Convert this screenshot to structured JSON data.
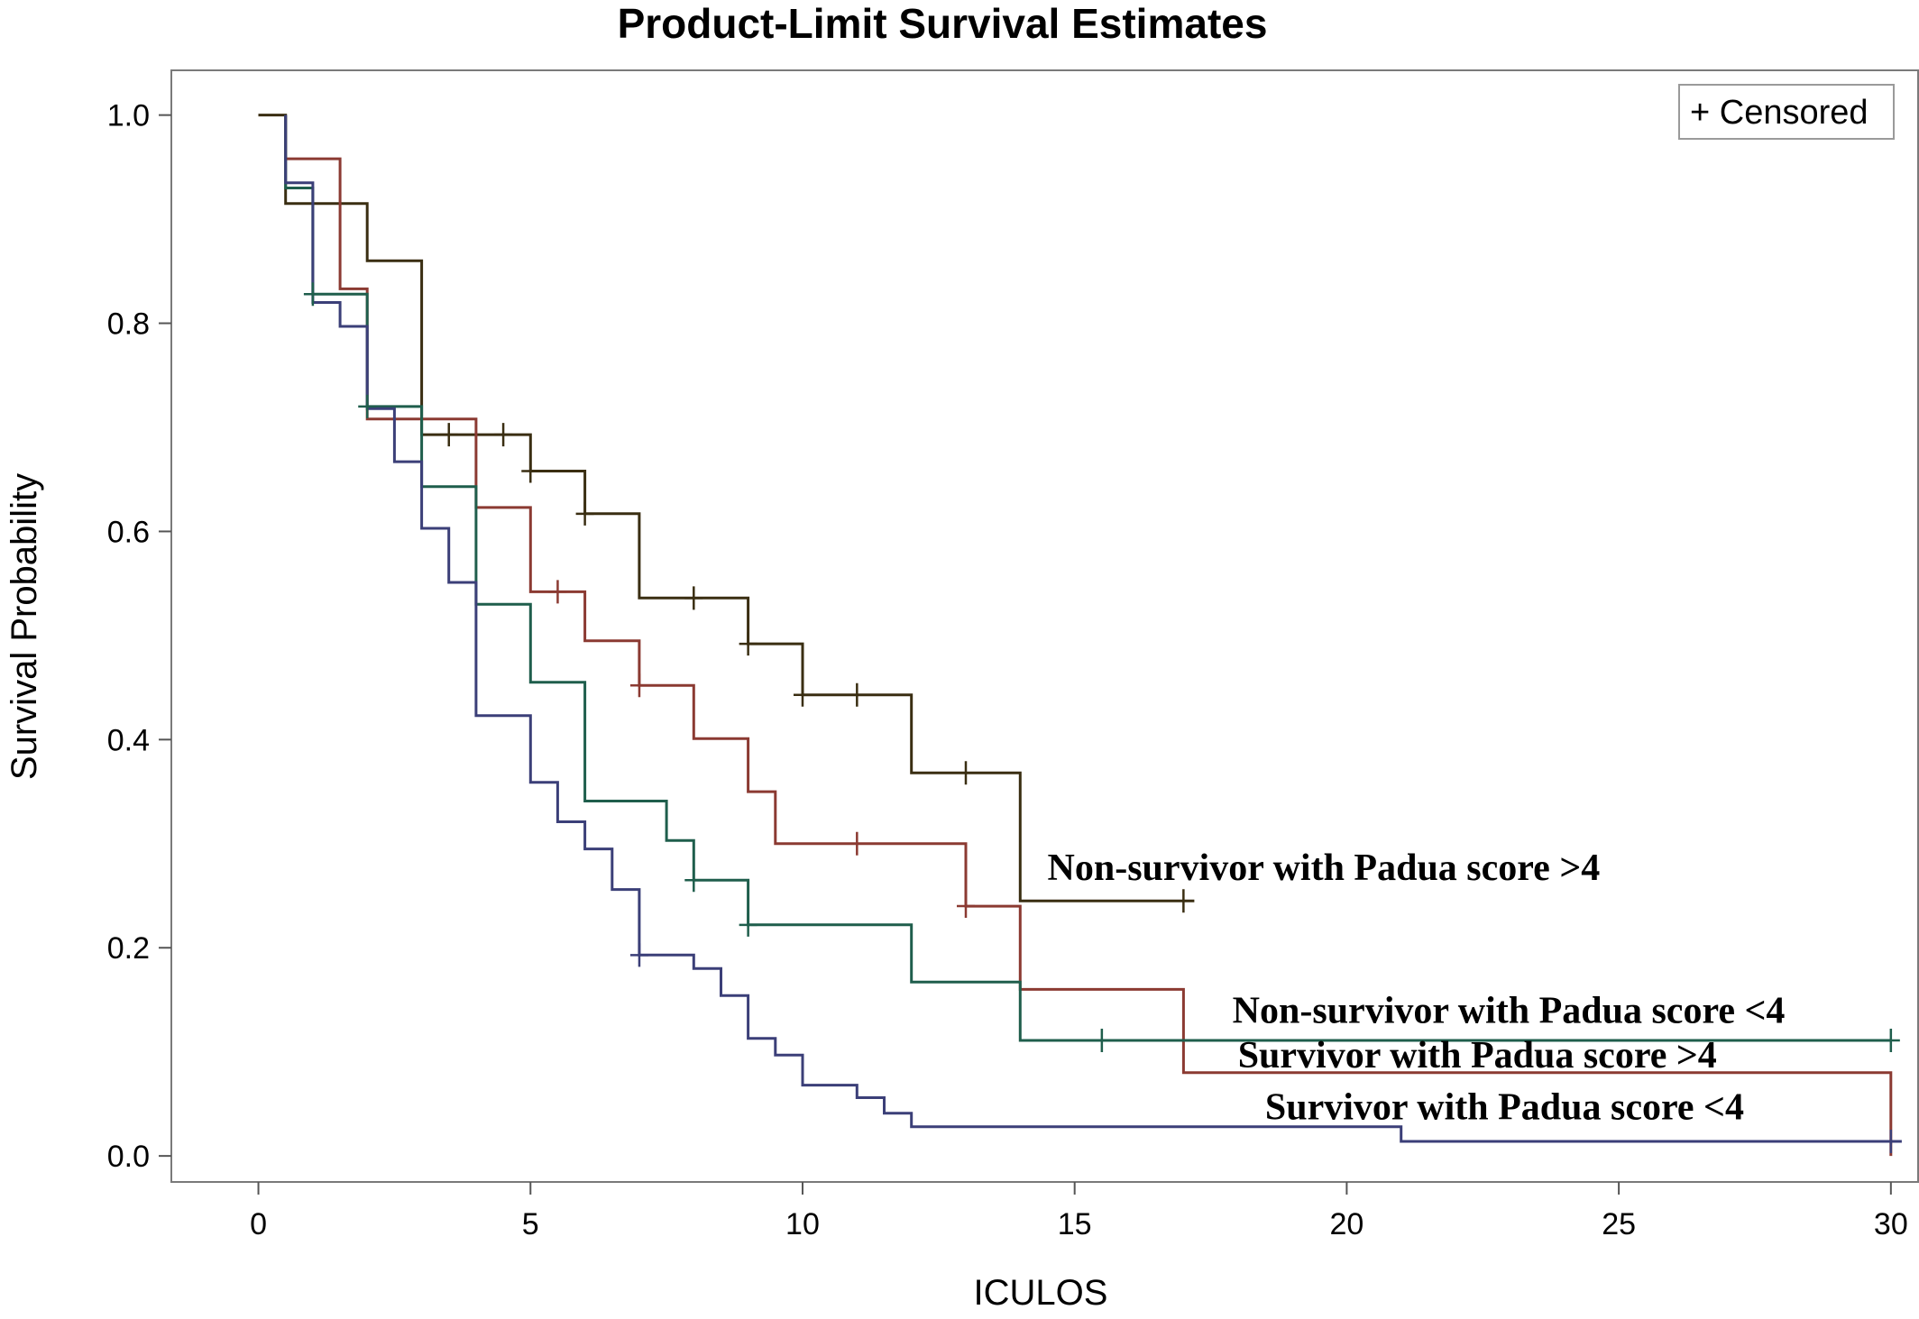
{
  "chart_data": {
    "type": "line",
    "step": true,
    "title": "Product-Limit Survival Estimates",
    "xlabel": "ICULOS",
    "ylabel": "Survival Probability",
    "xlim": [
      -1.6,
      30.5
    ],
    "ylim": [
      -0.025,
      1.043
    ],
    "xticks": [
      0,
      5,
      10,
      15,
      20,
      25,
      30
    ],
    "yticks": [
      0.0,
      0.2,
      0.4,
      0.6,
      0.8,
      1.0
    ],
    "xtick_labels": [
      "0",
      "5",
      "10",
      "15",
      "20",
      "25",
      "30"
    ],
    "ytick_labels": [
      "0.0",
      "0.2",
      "0.4",
      "0.6",
      "0.8",
      "1.0"
    ],
    "grid": false,
    "legend": {
      "text": "+ Censored",
      "placement": "top-right"
    },
    "series": [
      {
        "color": "#3a2e12",
        "steps": [
          [
            0,
            1.0
          ],
          [
            0.5,
            0.915
          ],
          [
            2.0,
            0.86
          ],
          [
            3.0,
            0.693
          ],
          [
            5.0,
            0.658
          ],
          [
            6.0,
            0.617
          ],
          [
            7.0,
            0.536
          ],
          [
            9.0,
            0.492
          ],
          [
            10.0,
            0.443
          ],
          [
            12.0,
            0.368
          ],
          [
            14.0,
            0.245
          ],
          [
            17.2,
            0.245
          ]
        ],
        "censored": [
          [
            3.5,
            0.693
          ],
          [
            4.5,
            0.693
          ],
          [
            5.0,
            0.658
          ],
          [
            6.0,
            0.617
          ],
          [
            8.0,
            0.536
          ],
          [
            9.0,
            0.492
          ],
          [
            10.0,
            0.443
          ],
          [
            11.0,
            0.443
          ],
          [
            13.0,
            0.368
          ],
          [
            17.0,
            0.245
          ]
        ]
      },
      {
        "color": "#8b3a32",
        "steps": [
          [
            0.5,
            1.0
          ],
          [
            0.5,
            0.958
          ],
          [
            1.0,
            0.958
          ],
          [
            1.5,
            0.833
          ],
          [
            2.0,
            0.708
          ],
          [
            4.0,
            0.623
          ],
          [
            5.0,
            0.542
          ],
          [
            6.0,
            0.495
          ],
          [
            7.0,
            0.452
          ],
          [
            8.0,
            0.401
          ],
          [
            9.0,
            0.35
          ],
          [
            9.5,
            0.3
          ],
          [
            13.0,
            0.24
          ],
          [
            14.0,
            0.16
          ],
          [
            17.0,
            0.08
          ],
          [
            30.0,
            0.08
          ],
          [
            30.0,
            0.0
          ]
        ],
        "censored": [
          [
            5.5,
            0.542
          ],
          [
            7.0,
            0.452
          ],
          [
            11.0,
            0.3
          ],
          [
            13.0,
            0.24
          ]
        ]
      },
      {
        "color": "#1f5e4c",
        "steps": [
          [
            0.5,
            1.0
          ],
          [
            0.5,
            0.93
          ],
          [
            1.0,
            0.93
          ],
          [
            1.0,
            0.828
          ],
          [
            2.0,
            0.72
          ],
          [
            3.0,
            0.643
          ],
          [
            4.0,
            0.53
          ],
          [
            5.0,
            0.455
          ],
          [
            6.0,
            0.341
          ],
          [
            7.5,
            0.303
          ],
          [
            8.0,
            0.265
          ],
          [
            9.0,
            0.222
          ],
          [
            12.0,
            0.167
          ],
          [
            14.0,
            0.111
          ],
          [
            30.0,
            0.111
          ]
        ],
        "censored": [
          [
            1.0,
            0.828
          ],
          [
            2.0,
            0.72
          ],
          [
            8.0,
            0.265
          ],
          [
            9.0,
            0.222
          ],
          [
            15.5,
            0.111
          ],
          [
            30.0,
            0.111
          ]
        ]
      },
      {
        "color": "#3b3f78",
        "steps": [
          [
            0.5,
            1.0
          ],
          [
            0.5,
            0.935
          ],
          [
            1.0,
            0.935
          ],
          [
            1.0,
            0.82
          ],
          [
            1.5,
            0.797
          ],
          [
            2.0,
            0.718
          ],
          [
            2.5,
            0.667
          ],
          [
            3.0,
            0.603
          ],
          [
            3.5,
            0.551
          ],
          [
            4.0,
            0.423
          ],
          [
            5.0,
            0.359
          ],
          [
            5.5,
            0.321
          ],
          [
            6.0,
            0.295
          ],
          [
            6.5,
            0.256
          ],
          [
            7.0,
            0.193
          ],
          [
            8.0,
            0.18
          ],
          [
            8.5,
            0.154
          ],
          [
            9.0,
            0.113
          ],
          [
            9.5,
            0.097
          ],
          [
            10.0,
            0.068
          ],
          [
            11.0,
            0.056
          ],
          [
            11.5,
            0.041
          ],
          [
            12.0,
            0.028
          ],
          [
            21.0,
            0.014
          ],
          [
            30.2,
            0.014
          ]
        ],
        "censored": [
          [
            7.0,
            0.193
          ],
          [
            30.0,
            0.014
          ]
        ]
      }
    ],
    "annotations": [
      {
        "text": "Non-survivor with Padua score >4",
        "x": 14.5,
        "y": 0.265
      },
      {
        "text": "Non-survivor with Padua score <4",
        "x": 17.9,
        "y": 0.128
      },
      {
        "text": "Survivor with Padua score >4",
        "x": 18.0,
        "y": 0.085
      },
      {
        "text": "Survivor with Padua score <4",
        "x": 18.5,
        "y": 0.035
      }
    ]
  }
}
